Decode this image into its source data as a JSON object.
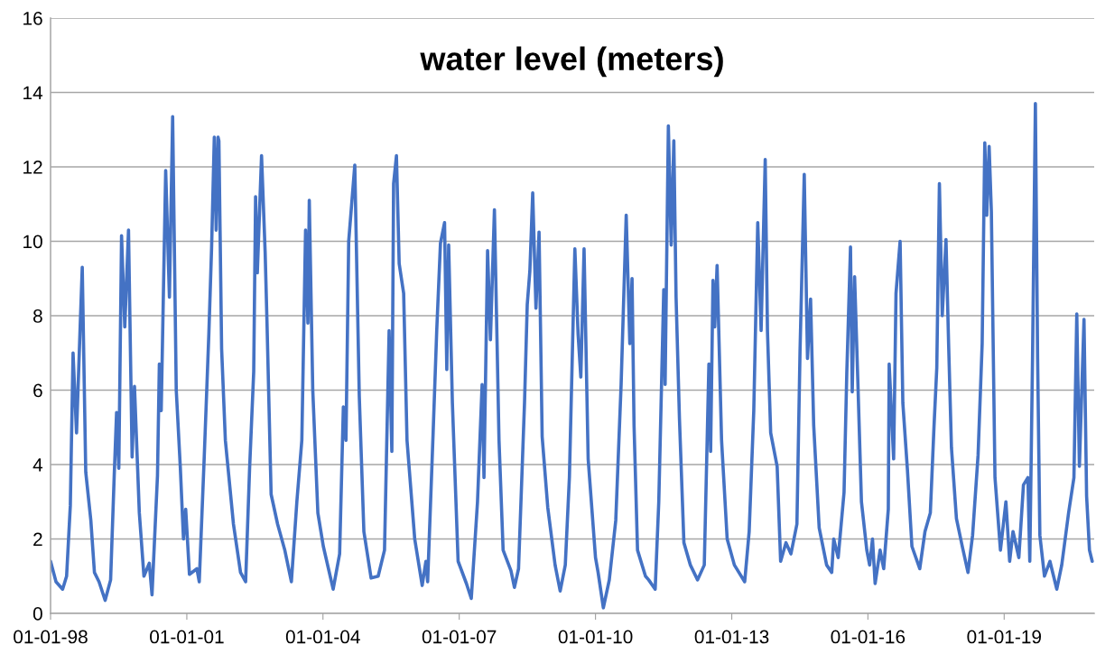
{
  "chart_data": {
    "type": "line",
    "title": "water level (meters)",
    "xlim": [
      "1998-01-01",
      "2020-12-25"
    ],
    "xticks": [
      {
        "value": "1998-01-01",
        "label": "01-01-98"
      },
      {
        "value": "2001-01-01",
        "label": "01-01-01"
      },
      {
        "value": "2004-01-01",
        "label": "01-01-04"
      },
      {
        "value": "2007-01-01",
        "label": "01-01-07"
      },
      {
        "value": "2010-01-01",
        "label": "01-01-10"
      },
      {
        "value": "2013-01-01",
        "label": "01-01-13"
      },
      {
        "value": "2016-01-01",
        "label": "01-01-16"
      },
      {
        "value": "2019-01-01",
        "label": "01-01-19"
      }
    ],
    "ylim": [
      0,
      16
    ],
    "yticks": [
      0,
      2,
      4,
      6,
      8,
      10,
      12,
      14,
      16
    ],
    "grid": "y",
    "line_style": "solid",
    "x": [
      "1998-01-01",
      "1998-02-14",
      "1998-04-08",
      "1998-05-10",
      "1998-06-09",
      "1998-07-01",
      "1998-07-29",
      "1998-08-25",
      "1998-09-13",
      "1998-10-11",
      "1998-11-21",
      "1998-12-20",
      "1999-01-26",
      "1999-03-16",
      "1999-04-29",
      "1999-05-28",
      "1999-06-16",
      "1999-07-04",
      "1999-07-26",
      "1999-08-21",
      "1999-09-20",
      "1999-10-19",
      "1999-11-07",
      "1999-12-16",
      "2000-01-22",
      "2000-03-05",
      "2000-03-27",
      "2000-05-10",
      "2000-05-25",
      "2000-06-09",
      "2000-07-15",
      "2000-08-14",
      "2000-09-09",
      "2000-10-08",
      "2000-11-10",
      "2000-12-05",
      "2000-12-23",
      "2001-01-22",
      "2001-03-23",
      "2001-04-11",
      "2001-05-21",
      "2001-06-27",
      "2001-07-19",
      "2001-08-10",
      "2001-08-25",
      "2001-09-09",
      "2001-09-16",
      "2001-10-08",
      "2001-11-07",
      "2002-01-11",
      "2002-03-09",
      "2002-04-19",
      "2002-05-21",
      "2002-06-23",
      "2002-07-08",
      "2002-07-22",
      "2002-08-25",
      "2002-09-23",
      "2002-10-08",
      "2002-11-10",
      "2003-01-01",
      "2003-02-28",
      "2003-04-22",
      "2003-06-05",
      "2003-07-15",
      "2003-08-14",
      "2003-09-02",
      "2003-09-13",
      "2003-10-11",
      "2003-11-21",
      "2004-01-04",
      "2004-03-23",
      "2004-05-14",
      "2004-06-13",
      "2004-07-04",
      "2004-07-26",
      "2004-09-13",
      "2004-10-19",
      "2004-11-25",
      "2005-01-22",
      "2005-03-20",
      "2005-05-10",
      "2005-06-16",
      "2005-07-08",
      "2005-07-22",
      "2005-08-14",
      "2005-09-05",
      "2005-10-11",
      "2005-11-07",
      "2006-01-08",
      "2006-03-09",
      "2006-04-08",
      "2006-04-22",
      "2006-06-05",
      "2006-07-04",
      "2006-08-03",
      "2006-09-05",
      "2006-09-23",
      "2006-10-08",
      "2006-11-07",
      "2006-12-23",
      "2007-02-28",
      "2007-04-08",
      "2007-05-28",
      "2007-07-04",
      "2007-07-19",
      "2007-08-17",
      "2007-09-09",
      "2007-10-11",
      "2007-11-17",
      "2007-12-20",
      "2008-02-21",
      "2008-03-20",
      "2008-04-22",
      "2008-06-09",
      "2008-07-01",
      "2008-07-22",
      "2008-08-14",
      "2008-09-09",
      "2008-10-04",
      "2008-10-29",
      "2008-12-13",
      "2009-02-10",
      "2009-03-23",
      "2009-05-03",
      "2009-06-05",
      "2009-07-19",
      "2009-08-14",
      "2009-09-05",
      "2009-10-01",
      "2009-11-03",
      "2010-01-01",
      "2010-01-22",
      "2010-03-05",
      "2010-04-22",
      "2010-06-13",
      "2010-07-26",
      "2010-09-05",
      "2010-10-04",
      "2010-10-22",
      "2010-11-07",
      "2010-12-05",
      "2011-02-07",
      "2011-03-05",
      "2011-04-26",
      "2011-05-25",
      "2011-07-04",
      "2011-07-15",
      "2011-08-10",
      "2011-09-02",
      "2011-09-23",
      "2011-10-11",
      "2011-11-07",
      "2011-12-13",
      "2012-02-03",
      "2012-04-01",
      "2012-05-25",
      "2012-07-01",
      "2012-07-15",
      "2012-08-03",
      "2012-08-17",
      "2012-09-05",
      "2012-10-11",
      "2012-11-25",
      "2013-01-22",
      "2013-04-15",
      "2013-05-21",
      "2013-06-27",
      "2013-07-29",
      "2013-08-25",
      "2013-09-27",
      "2013-10-15",
      "2013-11-10",
      "2014-01-01",
      "2014-01-29",
      "2014-03-13",
      "2014-04-22",
      "2014-06-09",
      "2014-07-04",
      "2014-08-07",
      "2014-09-02",
      "2014-09-27",
      "2014-10-22",
      "2014-12-05",
      "2015-02-03",
      "2015-03-16",
      "2015-04-01",
      "2015-05-07",
      "2015-06-23",
      "2015-07-15",
      "2015-08-14",
      "2015-08-28",
      "2015-09-16",
      "2015-10-11",
      "2015-11-10",
      "2015-12-23",
      "2016-01-15",
      "2016-02-07",
      "2016-02-28",
      "2016-04-08",
      "2016-05-07",
      "2016-06-13",
      "2016-06-20",
      "2016-07-26",
      "2016-08-14",
      "2016-09-16",
      "2016-10-08",
      "2016-11-14",
      "2016-12-20",
      "2017-02-21",
      "2017-04-04",
      "2017-05-17",
      "2017-06-16",
      "2017-07-08",
      "2017-07-29",
      "2017-08-21",
      "2017-09-20",
      "2017-10-11",
      "2017-11-03",
      "2017-12-13",
      "2018-01-29",
      "2018-03-16",
      "2018-04-22",
      "2018-06-05",
      "2018-07-08",
      "2018-07-29",
      "2018-08-14",
      "2018-09-02",
      "2018-09-20",
      "2018-10-19",
      "2018-12-02",
      "2019-01-15",
      "2019-02-14",
      "2019-03-13",
      "2019-04-29",
      "2019-06-05",
      "2019-07-11",
      "2019-07-26",
      "2019-08-17",
      "2019-09-09",
      "2019-09-27",
      "2019-10-15",
      "2019-11-21",
      "2020-01-04",
      "2020-02-28",
      "2020-04-08",
      "2020-06-02",
      "2020-07-15",
      "2020-08-07",
      "2020-08-28",
      "2020-10-04",
      "2020-10-25",
      "2020-11-17",
      "2020-12-09"
    ],
    "series": [
      {
        "color": "#4472c4",
        "values": [
          1.4,
          0.85,
          0.65,
          1.0,
          2.9,
          7.0,
          4.85,
          7.5,
          9.3,
          3.8,
          2.5,
          1.1,
          0.85,
          0.35,
          0.9,
          3.7,
          5.4,
          3.9,
          10.15,
          7.7,
          10.3,
          4.2,
          6.1,
          2.7,
          1.0,
          1.35,
          0.5,
          3.7,
          6.7,
          5.45,
          11.9,
          8.5,
          13.35,
          6.0,
          3.9,
          2.0,
          2.8,
          1.05,
          1.2,
          0.85,
          4.2,
          7.5,
          9.8,
          12.8,
          10.3,
          12.8,
          12.7,
          7.1,
          4.65,
          2.4,
          1.1,
          0.85,
          3.9,
          6.5,
          11.2,
          9.15,
          12.3,
          9.7,
          7.8,
          3.2,
          2.4,
          1.7,
          0.85,
          3.0,
          4.65,
          10.3,
          7.8,
          11.1,
          6.0,
          2.7,
          1.8,
          0.65,
          1.6,
          5.55,
          4.65,
          10.0,
          12.05,
          5.85,
          2.2,
          0.95,
          1.0,
          1.7,
          7.6,
          4.35,
          11.55,
          12.3,
          9.4,
          8.6,
          4.65,
          2.0,
          0.75,
          1.4,
          0.85,
          4.85,
          7.6,
          9.95,
          10.5,
          6.55,
          9.9,
          5.65,
          1.4,
          0.8,
          0.4,
          3.0,
          6.15,
          3.65,
          9.75,
          7.35,
          10.85,
          4.65,
          1.7,
          1.15,
          0.7,
          1.2,
          5.65,
          8.3,
          9.2,
          11.3,
          8.2,
          10.25,
          4.75,
          2.85,
          1.3,
          0.6,
          1.3,
          3.65,
          9.8,
          7.5,
          6.35,
          9.8,
          4.15,
          1.5,
          1.1,
          0.15,
          0.9,
          2.5,
          6.15,
          10.7,
          7.25,
          9.0,
          5.05,
          1.7,
          1.0,
          0.9,
          0.65,
          3.0,
          8.7,
          6.15,
          13.1,
          9.9,
          12.7,
          8.5,
          5.25,
          1.9,
          1.3,
          0.9,
          1.3,
          6.7,
          4.35,
          8.95,
          7.7,
          9.35,
          4.65,
          2.0,
          1.3,
          0.85,
          2.2,
          5.45,
          10.5,
          7.6,
          12.2,
          7.6,
          4.85,
          3.95,
          1.4,
          1.9,
          1.6,
          2.4,
          7.05,
          11.8,
          6.85,
          8.45,
          5.05,
          2.3,
          1.3,
          1.1,
          2.0,
          1.5,
          3.25,
          6.45,
          9.85,
          5.95,
          9.05,
          6.35,
          3.0,
          1.7,
          1.3,
          2.0,
          0.8,
          1.7,
          1.2,
          2.8,
          6.7,
          4.15,
          8.6,
          10.0,
          5.65,
          3.85,
          1.8,
          1.2,
          2.2,
          2.7,
          5.05,
          6.6,
          11.55,
          8.0,
          10.05,
          7.25,
          4.45,
          2.55,
          1.8,
          1.1,
          2.1,
          4.25,
          7.25,
          12.65,
          10.7,
          12.55,
          10.8,
          3.65,
          1.7,
          3.0,
          1.4,
          2.2,
          1.5,
          3.45,
          3.65,
          1.4,
          6.85,
          13.7,
          6.85,
          2.1,
          1.0,
          1.4,
          0.65,
          1.3,
          2.7,
          3.65,
          8.05,
          3.95,
          7.9,
          3.15,
          1.7,
          1.4
        ]
      }
    ]
  }
}
